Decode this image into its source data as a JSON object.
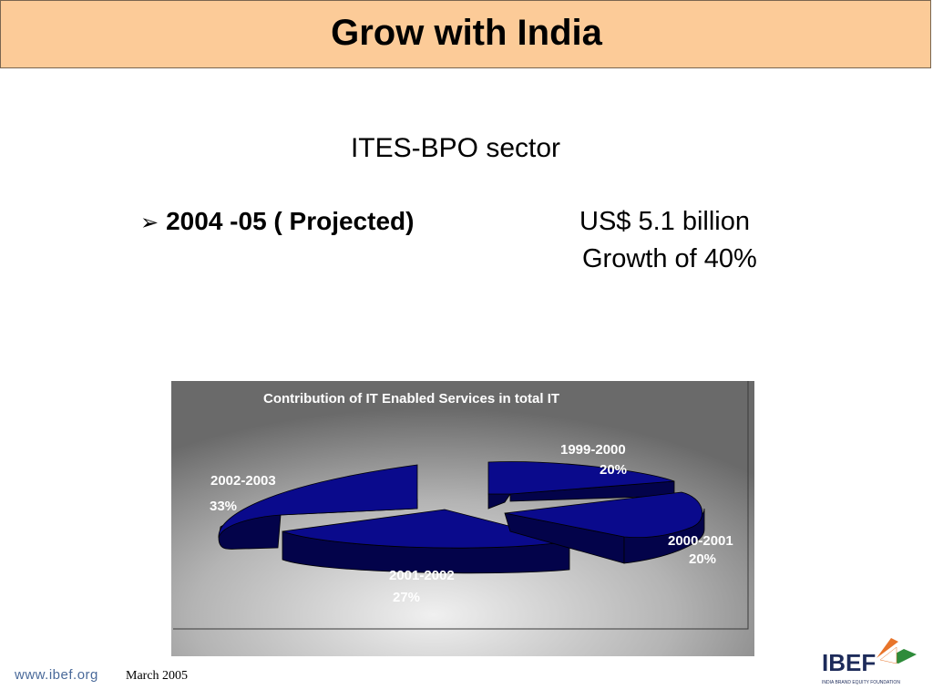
{
  "header": {
    "title": "Grow with India"
  },
  "content": {
    "sector": "ITES-BPO sector",
    "bullet_label": "2004 -05 ( Projected)",
    "amount": "US$ 5.1 billion",
    "growth": "Growth of 40%"
  },
  "footer": {
    "url": "www.ibef.org",
    "date": "March 2005",
    "logo_text": "IBEF",
    "logo_subtext": "INDIA BRAND EQUITY FOUNDATION"
  },
  "colors": {
    "title_bg": "#fccb98",
    "slice_top": "#0a0a8c",
    "slice_side": "#03034a",
    "chart_bg": "#b8b8b8",
    "logo_orange": "#e8742a",
    "logo_green": "#2e8b3a"
  },
  "chart_data": {
    "type": "pie",
    "title": "Contribution of IT Enabled Services in total IT",
    "categories": [
      "1999-2000",
      "2000-2001",
      "2001-2002",
      "2002-2003"
    ],
    "values": [
      20,
      20,
      27,
      33
    ],
    "value_labels": [
      "20%",
      "20%",
      "27%",
      "33%"
    ],
    "exploded": true,
    "three_d": true
  }
}
